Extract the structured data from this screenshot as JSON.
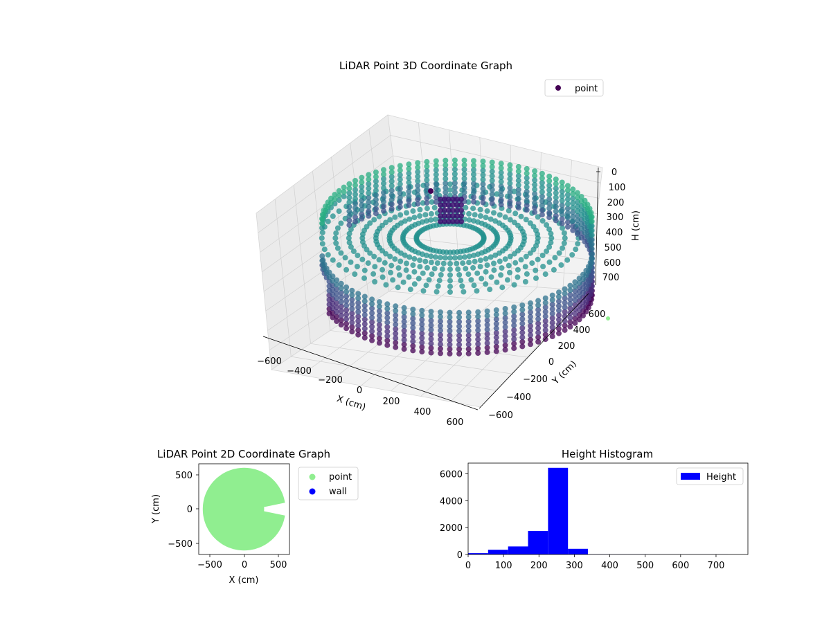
{
  "figure": {
    "charts": [
      "lidar-3d",
      "lidar-2d",
      "height-histogram"
    ]
  },
  "chart_data": [
    {
      "id": "lidar-3d",
      "type": "scatter",
      "title": "LiDAR Point 3D Coordinate Graph",
      "xlabel": "X (cm)",
      "ylabel": "Y (cm)",
      "zlabel": "H (cm)",
      "xticks": [
        "−600",
        "−400",
        "−200",
        "0",
        "200",
        "400",
        "600"
      ],
      "yticks": [
        "−600",
        "−400",
        "−200",
        "0",
        "200",
        "400",
        "600"
      ],
      "zticks": [
        "0",
        "100",
        "200",
        "300",
        "400",
        "500",
        "600",
        "700"
      ],
      "xlim": [
        -650,
        650
      ],
      "ylim": [
        -650,
        650
      ],
      "zlim": [
        750,
        0
      ],
      "zaxis_inverted": true,
      "grid": true,
      "legend": {
        "placement": "upper-right",
        "entries": [
          "point"
        ]
      },
      "colormap": "viridis",
      "series": [
        {
          "name": "point",
          "description": "Circular room scan: outer wall ring at radius ~620 cm spanning heights ~0-270 cm, inner floor/ceiling points ~230-260 cm, open gap on +X side",
          "wall_radius": 620,
          "wall_height_range": [
            0,
            270
          ],
          "floor_height": 250,
          "gap_angle_deg": [
            -25,
            25
          ]
        }
      ]
    },
    {
      "id": "lidar-2d",
      "type": "scatter",
      "title": "LiDAR Point 2D Coordinate Graph",
      "xlabel": "X (cm)",
      "ylabel": "Y (cm)",
      "xticks": [
        "−500",
        "0",
        "500"
      ],
      "yticks": [
        "500",
        "0",
        "−500"
      ],
      "xlim": [
        -680,
        680
      ],
      "ylim": [
        -680,
        680
      ],
      "legend": {
        "placement": "right-outside",
        "entries": [
          "point",
          "wall"
        ]
      },
      "series": [
        {
          "name": "point",
          "color": "#90ee90",
          "radius": 620,
          "gap_angle_deg": [
            -8,
            8
          ]
        },
        {
          "name": "wall",
          "color": "#0000ff",
          "count": 0
        }
      ]
    },
    {
      "id": "height-histogram",
      "type": "bar",
      "title": "Height Histogram",
      "xlabel": "",
      "ylabel": "",
      "xticks": [
        "0",
        "100",
        "200",
        "300",
        "400",
        "500",
        "600",
        "700"
      ],
      "yticks": [
        "0",
        "2000",
        "4000",
        "6000"
      ],
      "xlim": [
        0,
        790
      ],
      "ylim": [
        0,
        6800
      ],
      "legend": {
        "placement": "upper-right",
        "entries": [
          "Height"
        ]
      },
      "color": "#0000ff",
      "bin_edges": [
        0,
        56.4,
        112.8,
        169.2,
        225.6,
        282.0,
        338.4,
        394.8,
        451.2,
        507.6,
        564.0,
        620.4,
        676.8,
        733.2,
        789.6
      ],
      "series": [
        {
          "name": "Height",
          "values": [
            100,
            350,
            600,
            1750,
            6450,
            420,
            15,
            10,
            8,
            6,
            5,
            4,
            3,
            2
          ]
        }
      ]
    }
  ]
}
